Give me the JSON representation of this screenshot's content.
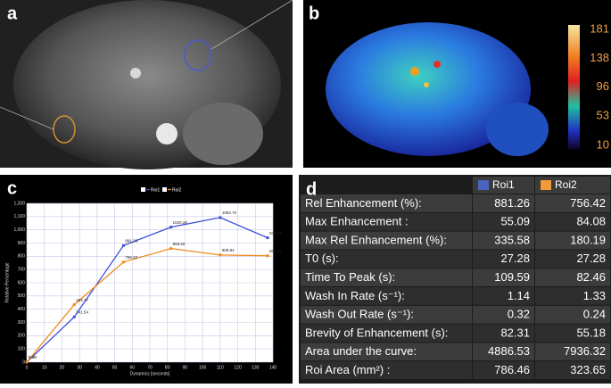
{
  "panel_labels": [
    "a",
    "b",
    "c",
    "d"
  ],
  "colorbar": {
    "ticks": [
      181,
      138,
      96,
      53,
      10
    ]
  },
  "chart_data": {
    "type": "line",
    "x_label": "Dynamics [seconds]",
    "y_label": "Relative Percentage",
    "x": [
      0,
      27,
      55,
      82,
      110,
      137
    ],
    "series": [
      {
        "name": "Roi1",
        "color": "#3d4ed8",
        "values": [
          0,
          341.54,
          881.26,
          1020.28,
          1092.7,
          939.77
        ],
        "value_labels": [
          "0.00",
          "341.54",
          "881.26",
          "1020.28",
          "1092.70",
          "939.77"
        ]
      },
      {
        "name": "Roi2",
        "color": "#f0891c",
        "values": [
          0,
          434.17,
          756.42,
          858.5,
          809.84,
          804.11
        ],
        "value_labels": [
          "0.00",
          "434.17",
          "756.42",
          "858.50",
          "809.84",
          "804.11"
        ]
      }
    ],
    "xlim": [
      0,
      140
    ],
    "xticks": [
      0,
      10,
      20,
      30,
      40,
      50,
      60,
      70,
      80,
      90,
      100,
      110,
      120,
      130,
      140
    ],
    "ylim": [
      0,
      1200
    ],
    "yticks": [
      0,
      100,
      200,
      300,
      400,
      500,
      600,
      700,
      800,
      900,
      {
        "value": 1000,
        "label": "1,000"
      },
      {
        "value": 1100,
        "label": "1,100"
      },
      {
        "value": 1200,
        "label": "1,200"
      }
    ],
    "grid": true
  },
  "table": {
    "columns": [
      "Roi1",
      "Roi2"
    ],
    "rows": [
      [
        "Rel Enhancement  (%):",
        "881.26",
        "756.42"
      ],
      [
        "Max Enhancement :",
        "55.09",
        "84.08"
      ],
      [
        "Max Rel Enhancement (%):",
        "335.58",
        "180.19"
      ],
      [
        "T0 (s):",
        "27.28",
        "27.28"
      ],
      [
        "Time To Peak  (s):",
        "109.59",
        "82.46"
      ],
      [
        "Wash In Rate (s⁻¹):",
        "1.14",
        "1.33"
      ],
      [
        "Wash Out Rate (s⁻¹):",
        "0.32",
        "0.24"
      ],
      [
        "Brevity of Enhancement (s):",
        "82.31",
        "55.18"
      ],
      [
        "Area under the curve:",
        "4886.53",
        "7936.32"
      ],
      [
        "Roi Area (mm²) :",
        "786.46",
        "323.65"
      ]
    ]
  }
}
